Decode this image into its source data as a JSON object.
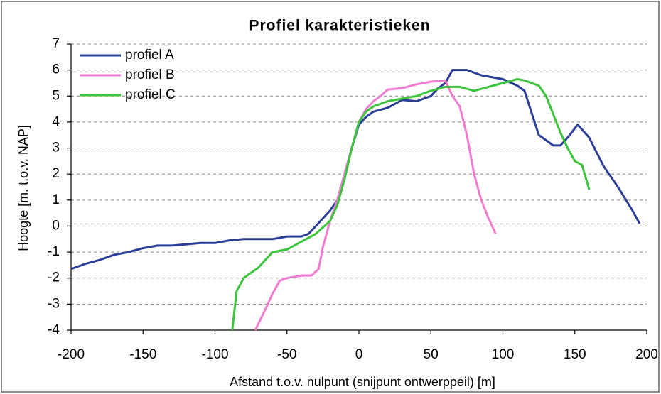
{
  "chart_data": {
    "type": "line",
    "title": "Profiel karakteristieken",
    "x_label": "Afstand t.o.v. nulpunt (snijpunt ontwerppeil) [m]",
    "y_label": "Hoogte [m. t.o.v. NAP]",
    "xlim": [
      -200,
      200
    ],
    "xticks": [
      -200,
      -150,
      -100,
      -50,
      0,
      50,
      100,
      150,
      200
    ],
    "ylim": [
      -4,
      7
    ],
    "yticks": [
      -4,
      -3,
      -2,
      -1,
      0,
      1,
      2,
      3,
      4,
      5,
      6,
      7
    ],
    "grid": true,
    "legend": "upper left",
    "series": [
      {
        "name": "profiel A",
        "color": "#2b3f98",
        "x": [
          -200,
          -190,
          -180,
          -170,
          -160,
          -150,
          -140,
          -130,
          -120,
          -110,
          -100,
          -90,
          -80,
          -70,
          -60,
          -50,
          -40,
          -35,
          -30,
          -25,
          -20,
          -15,
          -10,
          -5,
          0,
          5,
          10,
          20,
          30,
          40,
          50,
          55,
          60,
          65,
          75,
          85,
          100,
          110,
          115,
          125,
          135,
          140,
          145,
          152,
          160,
          170,
          180,
          190,
          195
        ],
        "values": [
          -1.65,
          -1.45,
          -1.3,
          -1.1,
          -1.0,
          -0.85,
          -0.75,
          -0.75,
          -0.7,
          -0.65,
          -0.65,
          -0.55,
          -0.5,
          -0.5,
          -0.5,
          -0.4,
          -0.4,
          -0.3,
          0,
          0.3,
          0.6,
          1.0,
          2.0,
          3.0,
          3.9,
          4.2,
          4.4,
          4.55,
          4.85,
          4.8,
          5.0,
          5.3,
          5.5,
          6.0,
          6.0,
          5.8,
          5.65,
          5.4,
          5.2,
          3.5,
          3.1,
          3.1,
          3.4,
          3.9,
          3.4,
          2.3,
          1.5,
          0.6,
          0.1
        ]
      },
      {
        "name": "profiel B",
        "color": "#f07cd2",
        "x": [
          -72,
          -65,
          -60,
          -55,
          -50,
          -40,
          -33,
          -28,
          -25,
          -20,
          -15,
          -10,
          -5,
          0,
          5,
          10,
          15,
          20,
          30,
          40,
          50,
          60,
          65,
          70,
          75,
          80,
          85,
          90,
          95
        ],
        "values": [
          -4,
          -3.2,
          -2.6,
          -2.1,
          -2.0,
          -1.9,
          -1.9,
          -1.65,
          -0.8,
          0.2,
          1.0,
          2.0,
          3.0,
          4.0,
          4.5,
          4.8,
          5.0,
          5.25,
          5.3,
          5.45,
          5.55,
          5.6,
          5.0,
          4.6,
          3.5,
          2.0,
          1.0,
          0.3,
          -0.3
        ]
      },
      {
        "name": "profiel C",
        "color": "#3cc43c",
        "x": [
          -88,
          -85,
          -80,
          -75,
          -70,
          -60,
          -50,
          -40,
          -30,
          -20,
          -15,
          -10,
          -5,
          0,
          5,
          10,
          20,
          30,
          40,
          50,
          60,
          70,
          80,
          90,
          100,
          110,
          115,
          125,
          130,
          135,
          140,
          145,
          150,
          155,
          160
        ],
        "values": [
          -4,
          -2.5,
          -2.0,
          -1.8,
          -1.6,
          -1.0,
          -0.9,
          -0.6,
          -0.3,
          0.2,
          0.8,
          1.8,
          3.0,
          4.0,
          4.4,
          4.6,
          4.8,
          4.9,
          5.0,
          5.2,
          5.35,
          5.35,
          5.2,
          5.35,
          5.5,
          5.65,
          5.6,
          5.4,
          5.0,
          4.3,
          3.6,
          3.0,
          2.5,
          2.35,
          1.4
        ]
      }
    ]
  }
}
